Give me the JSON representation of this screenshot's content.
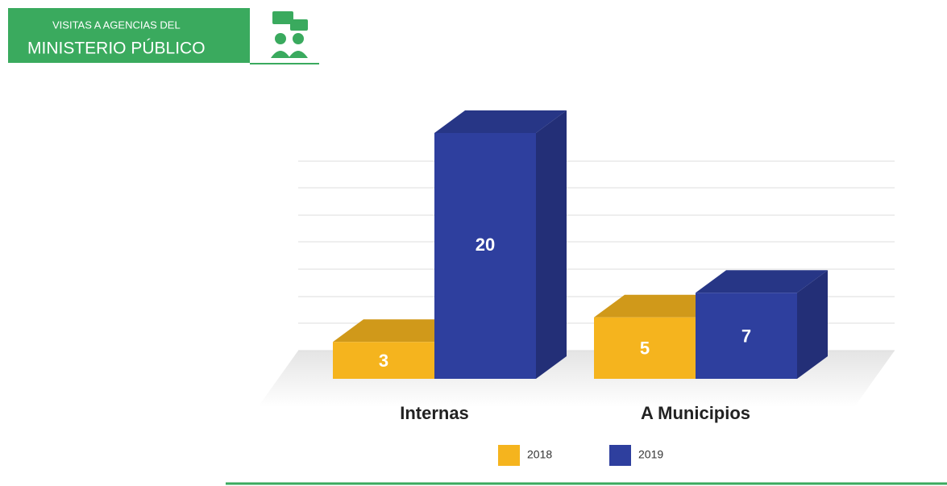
{
  "chart_data": {
    "type": "bar3d",
    "title": "VISITAS A AGENCIAS DEL",
    "subtitle": "MINISTERIO PÚBLICO",
    "categories": [
      "Internas",
      "A Municipios"
    ],
    "series": [
      {
        "name": "2018",
        "color": "#f5b41e",
        "values": [
          3,
          5
        ]
      },
      {
        "name": "2019",
        "color": "#2e3f9e",
        "values": [
          20,
          7
        ]
      }
    ],
    "ylim": [
      0,
      20
    ],
    "legend": "bottom"
  }
}
